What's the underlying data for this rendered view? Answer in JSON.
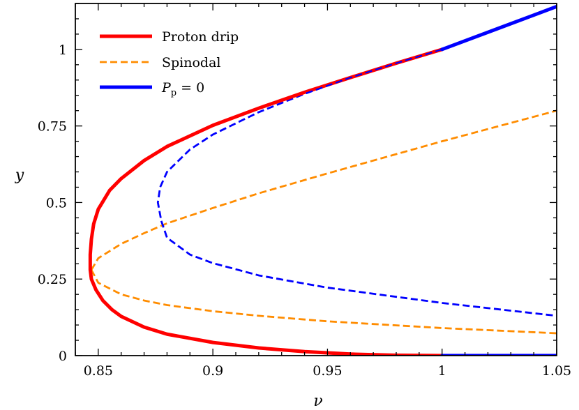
{
  "chart_data": {
    "type": "line",
    "title": "",
    "xlabel": "ν",
    "ylabel": "y",
    "xlim": [
      0.84,
      1.05
    ],
    "ylim": [
      0,
      1.15
    ],
    "xticks": [
      0.85,
      0.9,
      0.95,
      1.0,
      1.05
    ],
    "xtick_labels": [
      "0.85",
      "0.9",
      "0.95",
      "1",
      "1.05"
    ],
    "yticks": [
      0,
      0.25,
      0.5,
      0.75,
      1.0
    ],
    "ytick_labels": [
      "0",
      "0.25",
      "0.5",
      "0.75",
      "1"
    ],
    "grid": false,
    "legend_position": "top-left",
    "legend": [
      {
        "label": "Proton drip",
        "series": "proton_drip",
        "style": "solid",
        "color": "#ff0000"
      },
      {
        "label": "Spinodal",
        "series": "spinodal",
        "style": "dashed",
        "color": "#ff8c00"
      },
      {
        "label": "P_p = 0",
        "label_main": "P",
        "label_sub": "p",
        "label_rest": " = 0",
        "series": "pp0",
        "style": "solid",
        "color": "#0000ff"
      }
    ],
    "series": [
      {
        "name": "Proton drip",
        "id": "proton_drip",
        "color": "#ff0000",
        "style": "solid",
        "points": [
          [
            1.0,
            1.0
          ],
          [
            0.98,
            0.955
          ],
          [
            0.96,
            0.908
          ],
          [
            0.94,
            0.86
          ],
          [
            0.92,
            0.808
          ],
          [
            0.9,
            0.752
          ],
          [
            0.88,
            0.683
          ],
          [
            0.87,
            0.637
          ],
          [
            0.86,
            0.578
          ],
          [
            0.855,
            0.54
          ],
          [
            0.85,
            0.478
          ],
          [
            0.848,
            0.43
          ],
          [
            0.847,
            0.38
          ],
          [
            0.8465,
            0.33
          ],
          [
            0.8465,
            0.28
          ],
          [
            0.847,
            0.25
          ],
          [
            0.849,
            0.215
          ],
          [
            0.852,
            0.18
          ],
          [
            0.856,
            0.15
          ],
          [
            0.86,
            0.128
          ],
          [
            0.87,
            0.093
          ],
          [
            0.88,
            0.07
          ],
          [
            0.9,
            0.043
          ],
          [
            0.92,
            0.025
          ],
          [
            0.94,
            0.013
          ],
          [
            0.96,
            0.005
          ],
          [
            0.98,
            0.001
          ],
          [
            1.0,
            0.0
          ]
        ]
      },
      {
        "name": "Spinodal",
        "id": "spinodal_upper",
        "color": "#ff8c00",
        "style": "dashed",
        "points": [
          [
            0.847,
            0.28
          ],
          [
            0.85,
            0.318
          ],
          [
            0.86,
            0.365
          ],
          [
            0.87,
            0.4
          ],
          [
            0.88,
            0.432
          ],
          [
            0.9,
            0.482
          ],
          [
            0.92,
            0.53
          ],
          [
            0.95,
            0.595
          ],
          [
            1.0,
            0.7
          ],
          [
            1.05,
            0.8
          ]
        ]
      },
      {
        "name": "Spinodal",
        "id": "spinodal_lower",
        "color": "#ff8c00",
        "style": "dashed",
        "points": [
          [
            0.847,
            0.28
          ],
          [
            0.85,
            0.238
          ],
          [
            0.86,
            0.2
          ],
          [
            0.87,
            0.18
          ],
          [
            0.88,
            0.165
          ],
          [
            0.9,
            0.145
          ],
          [
            0.92,
            0.13
          ],
          [
            0.95,
            0.112
          ],
          [
            1.0,
            0.09
          ],
          [
            1.05,
            0.073
          ]
        ]
      },
      {
        "name": "P_p = 0",
        "id": "pp0_dashed_upper",
        "color": "#0000ff",
        "style": "dashed",
        "points": [
          [
            1.0,
            1.0
          ],
          [
            0.98,
            0.955
          ],
          [
            0.96,
            0.908
          ],
          [
            0.94,
            0.855
          ],
          [
            0.92,
            0.795
          ],
          [
            0.9,
            0.722
          ],
          [
            0.89,
            0.673
          ],
          [
            0.88,
            0.6
          ],
          [
            0.877,
            0.55
          ],
          [
            0.876,
            0.5
          ],
          [
            0.8775,
            0.44
          ]
        ]
      },
      {
        "name": "P_p = 0",
        "id": "pp0_dashed_lower",
        "color": "#0000ff",
        "style": "dashed",
        "points": [
          [
            0.8775,
            0.44
          ],
          [
            0.88,
            0.385
          ],
          [
            0.89,
            0.33
          ],
          [
            0.9,
            0.302
          ],
          [
            0.92,
            0.262
          ],
          [
            0.95,
            0.222
          ],
          [
            1.0,
            0.172
          ],
          [
            1.05,
            0.13
          ]
        ]
      },
      {
        "name": "P_p = 0",
        "id": "pp0_solid_upper",
        "color": "#0000ff",
        "style": "solid",
        "points": [
          [
            1.0,
            1.0
          ],
          [
            1.025,
            1.07
          ],
          [
            1.05,
            1.14
          ]
        ]
      },
      {
        "name": "P_p = 0",
        "id": "pp0_solid_lower",
        "color": "#0000ff",
        "style": "solid",
        "points": [
          [
            1.0,
            0.0
          ],
          [
            1.05,
            0.0
          ]
        ]
      }
    ]
  }
}
